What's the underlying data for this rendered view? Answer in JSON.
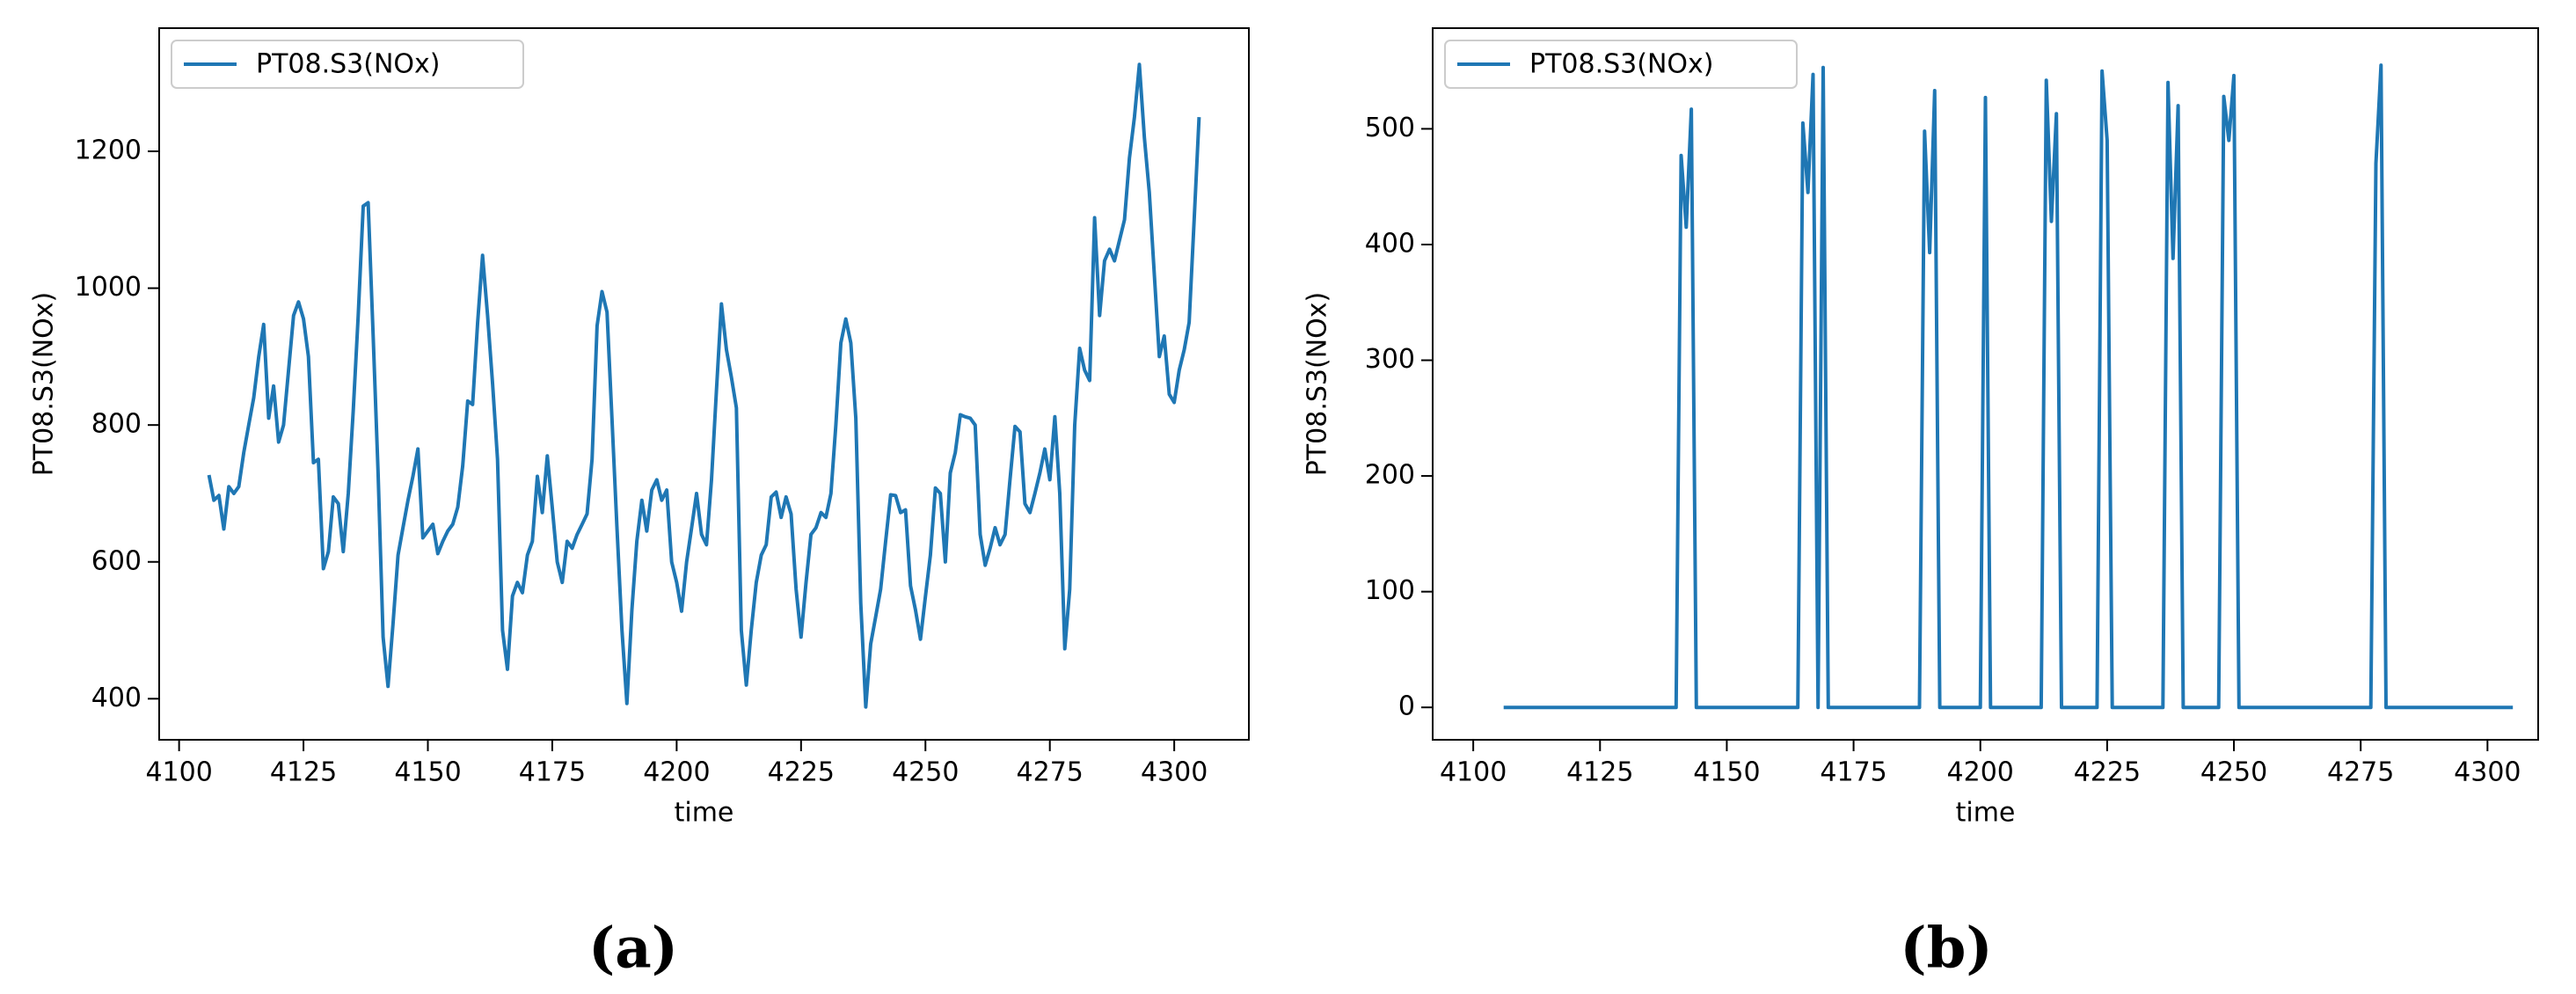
{
  "chart_data": [
    {
      "type": "line",
      "caption": "(a)",
      "xlabel": "time",
      "ylabel": "PT08.S3(NOx)",
      "legend": "upper left",
      "grid": false,
      "xlim": [
        4096,
        4315
      ],
      "xticks": [
        4100,
        4125,
        4150,
        4175,
        4200,
        4225,
        4250,
        4275,
        4300
      ],
      "ylim": [
        340,
        1380
      ],
      "yticks": [
        400,
        600,
        800,
        1000,
        1200
      ],
      "x": [
        4106,
        4107,
        4108,
        4109,
        4110,
        4111,
        4112,
        4113,
        4114,
        4115,
        4116,
        4117,
        4118,
        4119,
        4120,
        4121,
        4122,
        4123,
        4124,
        4125,
        4126,
        4127,
        4128,
        4129,
        4130,
        4131,
        4132,
        4133,
        4134,
        4135,
        4136,
        4137,
        4138,
        4139,
        4140,
        4141,
        4142,
        4143,
        4144,
        4145,
        4146,
        4147,
        4148,
        4149,
        4150,
        4151,
        4152,
        4153,
        4154,
        4155,
        4156,
        4157,
        4158,
        4159,
        4160,
        4161,
        4162,
        4163,
        4164,
        4165,
        4166,
        4167,
        4168,
        4169,
        4170,
        4171,
        4172,
        4173,
        4174,
        4175,
        4176,
        4177,
        4178,
        4179,
        4180,
        4181,
        4182,
        4183,
        4184,
        4185,
        4186,
        4187,
        4188,
        4189,
        4190,
        4191,
        4192,
        4193,
        4194,
        4195,
        4196,
        4197,
        4198,
        4199,
        4200,
        4201,
        4202,
        4203,
        4204,
        4205,
        4206,
        4207,
        4208,
        4209,
        4210,
        4211,
        4212,
        4213,
        4214,
        4215,
        4216,
        4217,
        4218,
        4219,
        4220,
        4221,
        4222,
        4223,
        4224,
        4225,
        4226,
        4227,
        4228,
        4229,
        4230,
        4231,
        4232,
        4233,
        4234,
        4235,
        4236,
        4237,
        4238,
        4239,
        4240,
        4241,
        4242,
        4243,
        4244,
        4245,
        4246,
        4247,
        4248,
        4249,
        4250,
        4251,
        4252,
        4253,
        4254,
        4255,
        4256,
        4257,
        4258,
        4259,
        4260,
        4261,
        4262,
        4263,
        4264,
        4265,
        4266,
        4267,
        4268,
        4269,
        4270,
        4271,
        4272,
        4273,
        4274,
        4275,
        4276,
        4277,
        4278,
        4279,
        4280,
        4281,
        4282,
        4283,
        4284,
        4285,
        4286,
        4287,
        4288,
        4289,
        4290,
        4291,
        4292,
        4293,
        4294,
        4295,
        4296,
        4297,
        4298,
        4299,
        4300,
        4301,
        4302,
        4303,
        4304,
        4305
      ],
      "series": [
        {
          "name": "PT08.S3(NOx)",
          "color": "#1f77b4",
          "values": [
            727,
            690,
            697,
            648,
            710,
            700,
            710,
            760,
            800,
            840,
            900,
            947,
            810,
            857,
            775,
            800,
            880,
            960,
            980,
            955,
            900,
            745,
            750,
            590,
            615,
            695,
            685,
            615,
            700,
            820,
            960,
            1120,
            1125,
            930,
            730,
            490,
            418,
            510,
            610,
            650,
            690,
            725,
            765,
            635,
            645,
            655,
            612,
            630,
            645,
            655,
            680,
            740,
            835,
            830,
            950,
            1048,
            960,
            860,
            750,
            500,
            443,
            550,
            570,
            555,
            610,
            630,
            725,
            672,
            755,
            680,
            600,
            570,
            630,
            620,
            640,
            655,
            670,
            750,
            945,
            995,
            965,
            810,
            650,
            500,
            393,
            530,
            630,
            690,
            645,
            705,
            720,
            690,
            705,
            600,
            570,
            528,
            600,
            650,
            700,
            640,
            625,
            720,
            850,
            977,
            910,
            870,
            825,
            500,
            420,
            500,
            570,
            610,
            625,
            695,
            702,
            665,
            695,
            670,
            560,
            490,
            570,
            640,
            650,
            672,
            665,
            700,
            800,
            920,
            955,
            920,
            810,
            540,
            388,
            480,
            520,
            560,
            630,
            698,
            697,
            672,
            676,
            565,
            530,
            487,
            550,
            610,
            708,
            700,
            600,
            730,
            760,
            815,
            812,
            810,
            800,
            640,
            595,
            620,
            650,
            625,
            640,
            720,
            798,
            790,
            685,
            672,
            700,
            730,
            765,
            720,
            812,
            700,
            473,
            560,
            800,
            912,
            880,
            865,
            1103,
            960,
            1040,
            1057,
            1040,
            1070,
            1100,
            1190,
            1250,
            1327,
            1220,
            1140,
            1020,
            900,
            930,
            845,
            833,
            880,
            910,
            950,
            1100,
            1250
          ]
        }
      ]
    },
    {
      "type": "line",
      "caption": "(b)",
      "xlabel": "time",
      "ylabel": "PT08.S3(NOx)",
      "legend": "upper left",
      "grid": false,
      "xlim": [
        4092,
        4310
      ],
      "xticks": [
        4100,
        4125,
        4150,
        4175,
        4200,
        4225,
        4250,
        4275,
        4300
      ],
      "ylim": [
        -28,
        587
      ],
      "yticks": [
        0,
        100,
        200,
        300,
        400,
        500
      ],
      "x": [
        4106,
        4107,
        4108,
        4109,
        4110,
        4111,
        4112,
        4113,
        4114,
        4115,
        4116,
        4117,
        4118,
        4119,
        4120,
        4121,
        4122,
        4123,
        4124,
        4125,
        4126,
        4127,
        4128,
        4129,
        4130,
        4131,
        4132,
        4133,
        4134,
        4135,
        4136,
        4137,
        4138,
        4139,
        4140,
        4141,
        4142,
        4143,
        4144,
        4145,
        4146,
        4147,
        4148,
        4149,
        4150,
        4151,
        4152,
        4153,
        4154,
        4155,
        4156,
        4157,
        4158,
        4159,
        4160,
        4161,
        4162,
        4163,
        4164,
        4165,
        4166,
        4167,
        4168,
        4169,
        4170,
        4171,
        4172,
        4173,
        4174,
        4175,
        4176,
        4177,
        4178,
        4179,
        4180,
        4181,
        4182,
        4183,
        4184,
        4185,
        4186,
        4187,
        4188,
        4189,
        4190,
        4191,
        4192,
        4193,
        4194,
        4195,
        4196,
        4197,
        4198,
        4199,
        4200,
        4201,
        4202,
        4203,
        4204,
        4205,
        4206,
        4207,
        4208,
        4209,
        4210,
        4211,
        4212,
        4213,
        4214,
        4215,
        4216,
        4217,
        4218,
        4219,
        4220,
        4221,
        4222,
        4223,
        4224,
        4225,
        4226,
        4227,
        4228,
        4229,
        4230,
        4231,
        4232,
        4233,
        4234,
        4235,
        4236,
        4237,
        4238,
        4239,
        4240,
        4241,
        4242,
        4243,
        4244,
        4245,
        4246,
        4247,
        4248,
        4249,
        4250,
        4251,
        4252,
        4253,
        4254,
        4255,
        4256,
        4257,
        4258,
        4259,
        4260,
        4261,
        4262,
        4263,
        4264,
        4265,
        4266,
        4267,
        4268,
        4269,
        4270,
        4271,
        4272,
        4273,
        4274,
        4275,
        4276,
        4277,
        4278,
        4279,
        4280,
        4281,
        4282,
        4283,
        4284,
        4285,
        4286,
        4287,
        4288,
        4289,
        4290,
        4291,
        4292,
        4293,
        4294,
        4295,
        4296,
        4297,
        4298,
        4299,
        4300,
        4301,
        4302,
        4303,
        4304,
        4305
      ],
      "series": [
        {
          "name": "PT08.S3(NOx)",
          "color": "#1f77b4",
          "values": [
            0,
            0,
            0,
            0,
            0,
            0,
            0,
            0,
            0,
            0,
            0,
            0,
            0,
            0,
            0,
            0,
            0,
            0,
            0,
            0,
            0,
            0,
            0,
            0,
            0,
            0,
            0,
            0,
            0,
            0,
            0,
            0,
            0,
            0,
            0,
            477,
            415,
            517,
            0,
            0,
            0,
            0,
            0,
            0,
            0,
            0,
            0,
            0,
            0,
            0,
            0,
            0,
            0,
            0,
            0,
            0,
            0,
            0,
            0,
            505,
            445,
            547,
            0,
            553,
            0,
            0,
            0,
            0,
            0,
            0,
            0,
            0,
            0,
            0,
            0,
            0,
            0,
            0,
            0,
            0,
            0,
            0,
            0,
            498,
            393,
            533,
            0,
            0,
            0,
            0,
            0,
            0,
            0,
            0,
            0,
            527,
            0,
            0,
            0,
            0,
            0,
            0,
            0,
            0,
            0,
            0,
            0,
            542,
            420,
            513,
            0,
            0,
            0,
            0,
            0,
            0,
            0,
            0,
            550,
            490,
            0,
            0,
            0,
            0,
            0,
            0,
            0,
            0,
            0,
            0,
            0,
            540,
            388,
            520,
            0,
            0,
            0,
            0,
            0,
            0,
            0,
            0,
            528,
            490,
            546,
            0,
            0,
            0,
            0,
            0,
            0,
            0,
            0,
            0,
            0,
            0,
            0,
            0,
            0,
            0,
            0,
            0,
            0,
            0,
            0,
            0,
            0,
            0,
            0,
            0,
            0,
            0,
            470,
            555,
            0,
            0,
            0,
            0,
            0,
            0,
            0,
            0,
            0,
            0,
            0,
            0,
            0,
            0,
            0,
            0,
            0,
            0,
            0,
            0,
            0,
            0,
            0,
            0,
            0,
            0
          ]
        }
      ]
    }
  ]
}
